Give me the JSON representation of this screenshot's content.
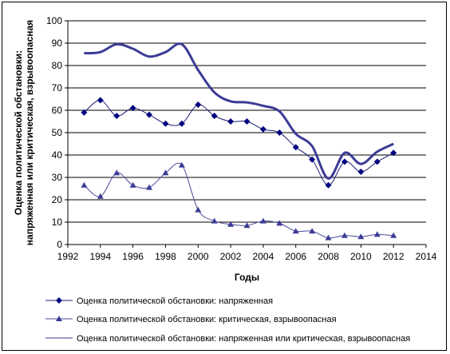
{
  "chart_data": {
    "type": "line",
    "xlabel": "Годы",
    "ylabel_line1": "Оценка политической обстановки:",
    "ylabel_line2": "напряженная или критическая, взрывоопасная",
    "xlim": [
      1992,
      2014
    ],
    "ylim": [
      0,
      100
    ],
    "x_ticks": [
      1992,
      1994,
      1996,
      1998,
      2000,
      2002,
      2004,
      2006,
      2008,
      2010,
      2012,
      2014
    ],
    "y_ticks": [
      0,
      10,
      20,
      30,
      40,
      50,
      60,
      70,
      80,
      90,
      100
    ],
    "grid": "horizontal",
    "legend_position": "bottom",
    "series": [
      {
        "name": "Оценка политической обстановки: напряженная",
        "marker": "diamond",
        "color": "#1f1f78",
        "x": [
          1993,
          1994,
          1995,
          1996,
          1997,
          1998,
          1999,
          2000,
          2001,
          2002,
          2003,
          2004,
          2005,
          2006,
          2007,
          2008,
          2009,
          2010,
          2011,
          2012
        ],
        "y": [
          59,
          64.5,
          57.5,
          61,
          58,
          54,
          54,
          62.5,
          57.5,
          55,
          55,
          51.5,
          50,
          43.5,
          38,
          26.5,
          37,
          32.5,
          37,
          41
        ]
      },
      {
        "name": "Оценка политической обстановки: критическая, взрывоопасная",
        "marker": "triangle",
        "color": "#4b4b9b",
        "x": [
          1993,
          1994,
          1995,
          1996,
          1997,
          1998,
          1999,
          2000,
          2001,
          2002,
          2003,
          2004,
          2005,
          2006,
          2007,
          2008,
          2009,
          2010,
          2011,
          2012
        ],
        "y": [
          26.5,
          21.5,
          32,
          26.5,
          25.5,
          32,
          35.5,
          15.5,
          10.5,
          9,
          8.5,
          10.5,
          9.5,
          6,
          6,
          3,
          4,
          3.5,
          4.5,
          4
        ]
      },
      {
        "name": "Оценка политической обстановки: напряженная или критическая, взрывоопасная",
        "marker": "none",
        "color": "#3b3b96",
        "x": [
          1993,
          1994,
          1995,
          1996,
          1997,
          1998,
          1999,
          2000,
          2001,
          2002,
          2003,
          2004,
          2005,
          2006,
          2007,
          2008,
          2009,
          2010,
          2011,
          2012
        ],
        "y": [
          85.5,
          86,
          89.5,
          87.5,
          84,
          86,
          89.5,
          78,
          68,
          64,
          63.5,
          62,
          59.5,
          49.5,
          44,
          29.5,
          41,
          36,
          41.5,
          45
        ]
      }
    ]
  }
}
